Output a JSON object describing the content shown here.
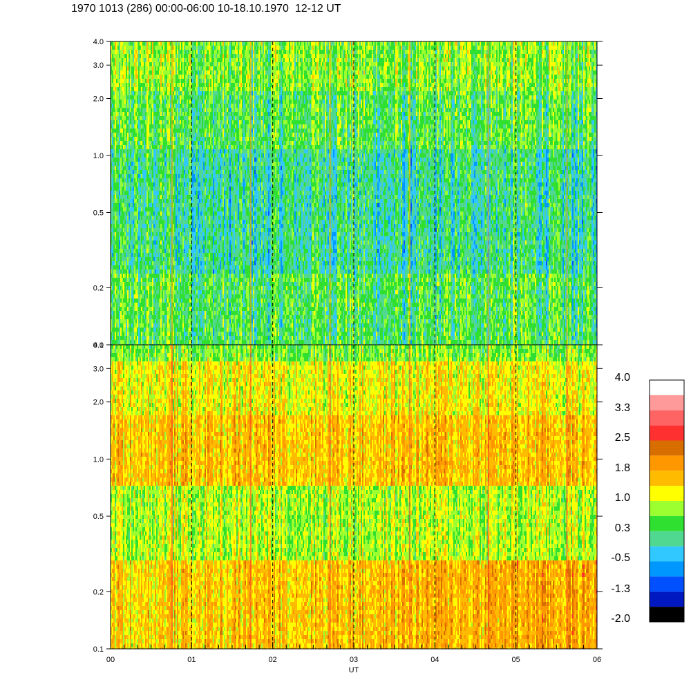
{
  "title": "1970 1013 (286) 00:00-06:00 10-18.10.1970  12-12 UT",
  "chart_data": [
    {
      "type": "heatmap",
      "panel": "upper",
      "y_ticks": [
        "0.1",
        "0.2",
        "0.5",
        "1.0",
        "2.0",
        "3.0",
        "4.0"
      ],
      "y_values": [
        0.1,
        0.2,
        0.5,
        1.0,
        2.0,
        3.0,
        4.0
      ],
      "y_scale": "log",
      "ylim": [
        0.1,
        4.0
      ],
      "xlim": [
        0,
        6
      ],
      "dominant_levels": [
        0.3,
        1.0,
        -0.5
      ],
      "vertical_dashed_lines_at": [
        1,
        2,
        3,
        4,
        5
      ]
    },
    {
      "type": "heatmap",
      "panel": "lower",
      "y_ticks": [
        "0.1",
        "0.2",
        "0.5",
        "1.0",
        "2.0",
        "3.0",
        "4.0"
      ],
      "y_values": [
        0.1,
        0.2,
        0.5,
        1.0,
        2.0,
        3.0,
        4.0
      ],
      "y_scale": "log",
      "ylim": [
        0.1,
        4.0
      ],
      "xlim": [
        0,
        6
      ],
      "dominant_levels": [
        1.0,
        1.8,
        2.5
      ],
      "vertical_dashed_lines_at": [
        1,
        2,
        3,
        4,
        5
      ]
    }
  ],
  "x_ticks": [
    "00",
    "01",
    "02",
    "03",
    "04",
    "05",
    "06"
  ],
  "x_values": [
    0,
    1,
    2,
    3,
    4,
    5,
    6
  ],
  "xlabel": "UT",
  "colorbar": {
    "labels": [
      "4.0",
      "3.3",
      "2.5",
      "1.8",
      "1.0",
      "0.3",
      "-0.5",
      "-1.3",
      "-2.0"
    ],
    "colors": [
      "#ffffff",
      "#ff9a9a",
      "#ff6464",
      "#ff3030",
      "#d96e00",
      "#ff9800",
      "#ffbb00",
      "#ffff00",
      "#9cff30",
      "#30e030",
      "#50d890",
      "#30c8ff",
      "#0098ff",
      "#0050ff",
      "#0018c0",
      "#000000"
    ]
  }
}
